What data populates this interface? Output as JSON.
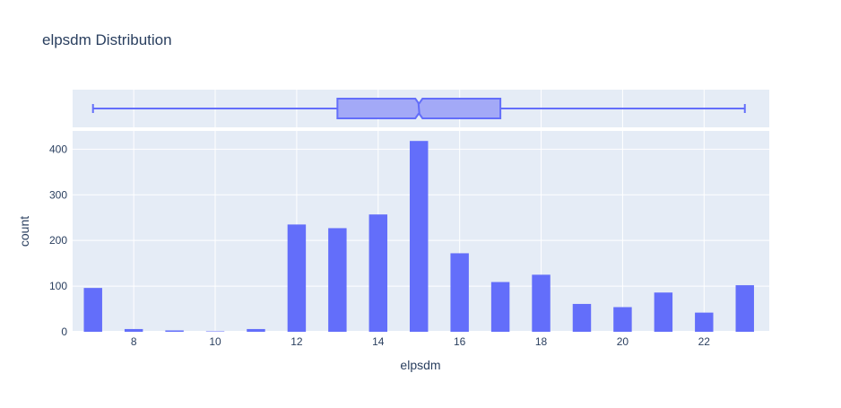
{
  "chart_data": {
    "type": "bar",
    "title": "elpsdm Distribution",
    "xlabel": "elpsdm",
    "ylabel": "count",
    "x": [
      7,
      8,
      9,
      10,
      11,
      12,
      13,
      14,
      15,
      16,
      17,
      18,
      19,
      20,
      21,
      22,
      23
    ],
    "values": [
      96,
      6,
      3,
      1,
      6,
      235,
      227,
      257,
      418,
      172,
      109,
      125,
      61,
      54,
      86,
      42,
      102
    ],
    "xlim": [
      6.5,
      23.6
    ],
    "ylim": [
      0,
      440
    ],
    "xticks": [
      8,
      10,
      12,
      14,
      16,
      18,
      20,
      22
    ],
    "yticks": [
      0,
      100,
      200,
      300,
      400
    ],
    "grid": true,
    "bar_color": "#636efa",
    "boxplot": {
      "min": 7,
      "q1": 13,
      "median": 15,
      "q3": 17,
      "max": 23,
      "notch_low": 14.95,
      "notch_high": 15.05,
      "fill_color": "#a3a9f7",
      "line_color": "#636efa"
    },
    "plot_bg_color": "#e5ecf6",
    "grid_color": "#ffffff",
    "text_color": "#2a3f5f"
  }
}
